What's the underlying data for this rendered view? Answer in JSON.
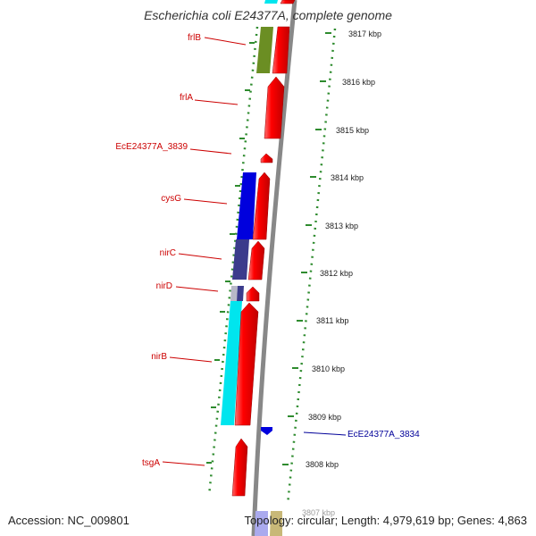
{
  "header": {
    "title": "Escherichia coli E24377A, complete genome"
  },
  "footer": {
    "accession": "Accession: NC_009801",
    "stats": "Topology: circular; Length: 4,979,619 bp; Genes: 4,863"
  },
  "scale": {
    "ticks": [
      "3817 kbp",
      "3816 kbp",
      "3815 kbp",
      "3814 kbp",
      "3813 kbp",
      "3812 kbp",
      "3811 kbp",
      "3810 kbp",
      "3809 kbp",
      "3808 kbp",
      "3807 kbp"
    ]
  },
  "genes": [
    {
      "name": "frlB",
      "color": "#cc0000"
    },
    {
      "name": "frlA",
      "color": "#cc0000"
    },
    {
      "name": "EcE24377A_3839",
      "color": "#cc0000"
    },
    {
      "name": "cysG",
      "color": "#cc0000"
    },
    {
      "name": "nirC",
      "color": "#cc0000"
    },
    {
      "name": "nirD",
      "color": "#cc0000"
    },
    {
      "name": "nirB",
      "color": "#cc0000"
    },
    {
      "name": "EcE24377A_3834",
      "color": "#000099"
    },
    {
      "name": "tsgA",
      "color": "#cc0000"
    }
  ],
  "colors": {
    "forward_cds": "#ff0000",
    "backbone": "#888888",
    "cog_blue": "#0000dd",
    "cog_indigo": "#3b3b8c",
    "cog_cyan": "#00e5ee",
    "cog_olive": "#6b8e23",
    "gc_skew_dots": "#2e8b2e",
    "label_red": "#cc0000",
    "label_blue": "#000099"
  }
}
